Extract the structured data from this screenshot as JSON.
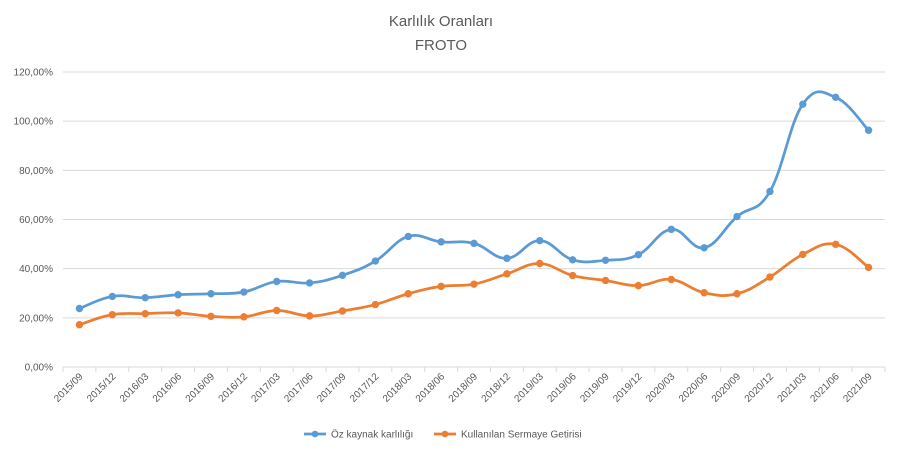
{
  "chart_data": {
    "type": "line",
    "title": "Karlılık Oranları",
    "subtitle": "FROTO",
    "xlabel": "",
    "ylabel": "",
    "ylim": [
      0,
      120
    ],
    "y_ticks": [
      0,
      20,
      40,
      60,
      80,
      100,
      120
    ],
    "y_tick_labels": [
      "0,00%",
      "20,00%",
      "40,00%",
      "60,00%",
      "80,00%",
      "100,00%",
      "120,00%"
    ],
    "grid": true,
    "legend_position": "bottom",
    "smooth": true,
    "categories": [
      "2015/09",
      "2015/12",
      "2016/03",
      "2016/06",
      "2016/09",
      "2016/12",
      "2017/03",
      "2017/06",
      "2017/09",
      "2017/12",
      "2018/03",
      "2018/06",
      "2018/09",
      "2018/12",
      "2019/03",
      "2019/06",
      "2019/09",
      "2019/12",
      "2020/03",
      "2020/06",
      "2020/09",
      "2020/12",
      "2021/03",
      "2021/06",
      "2021/09"
    ],
    "series": [
      {
        "name": "Öz kaynak karlılığı",
        "color": "#5B9BD5",
        "values": [
          23.8,
          28.7,
          28.2,
          29.4,
          29.8,
          30.5,
          34.8,
          34.2,
          37.3,
          43.1,
          53.1,
          50.9,
          50.3,
          44.2,
          51.4,
          43.6,
          43.4,
          45.7,
          56.0,
          48.5,
          61.2,
          71.4,
          106.9,
          109.7,
          96.3
        ]
      },
      {
        "name": "Kullanılan Sermaye Getirisi",
        "color": "#ED7D31",
        "values": [
          17.2,
          21.3,
          21.7,
          22.0,
          20.6,
          20.4,
          23.0,
          20.8,
          22.8,
          25.4,
          29.8,
          32.8,
          33.7,
          37.9,
          42.1,
          37.2,
          35.2,
          33.1,
          35.6,
          30.2,
          29.8,
          36.6,
          45.8,
          49.9,
          40.5
        ]
      }
    ]
  }
}
